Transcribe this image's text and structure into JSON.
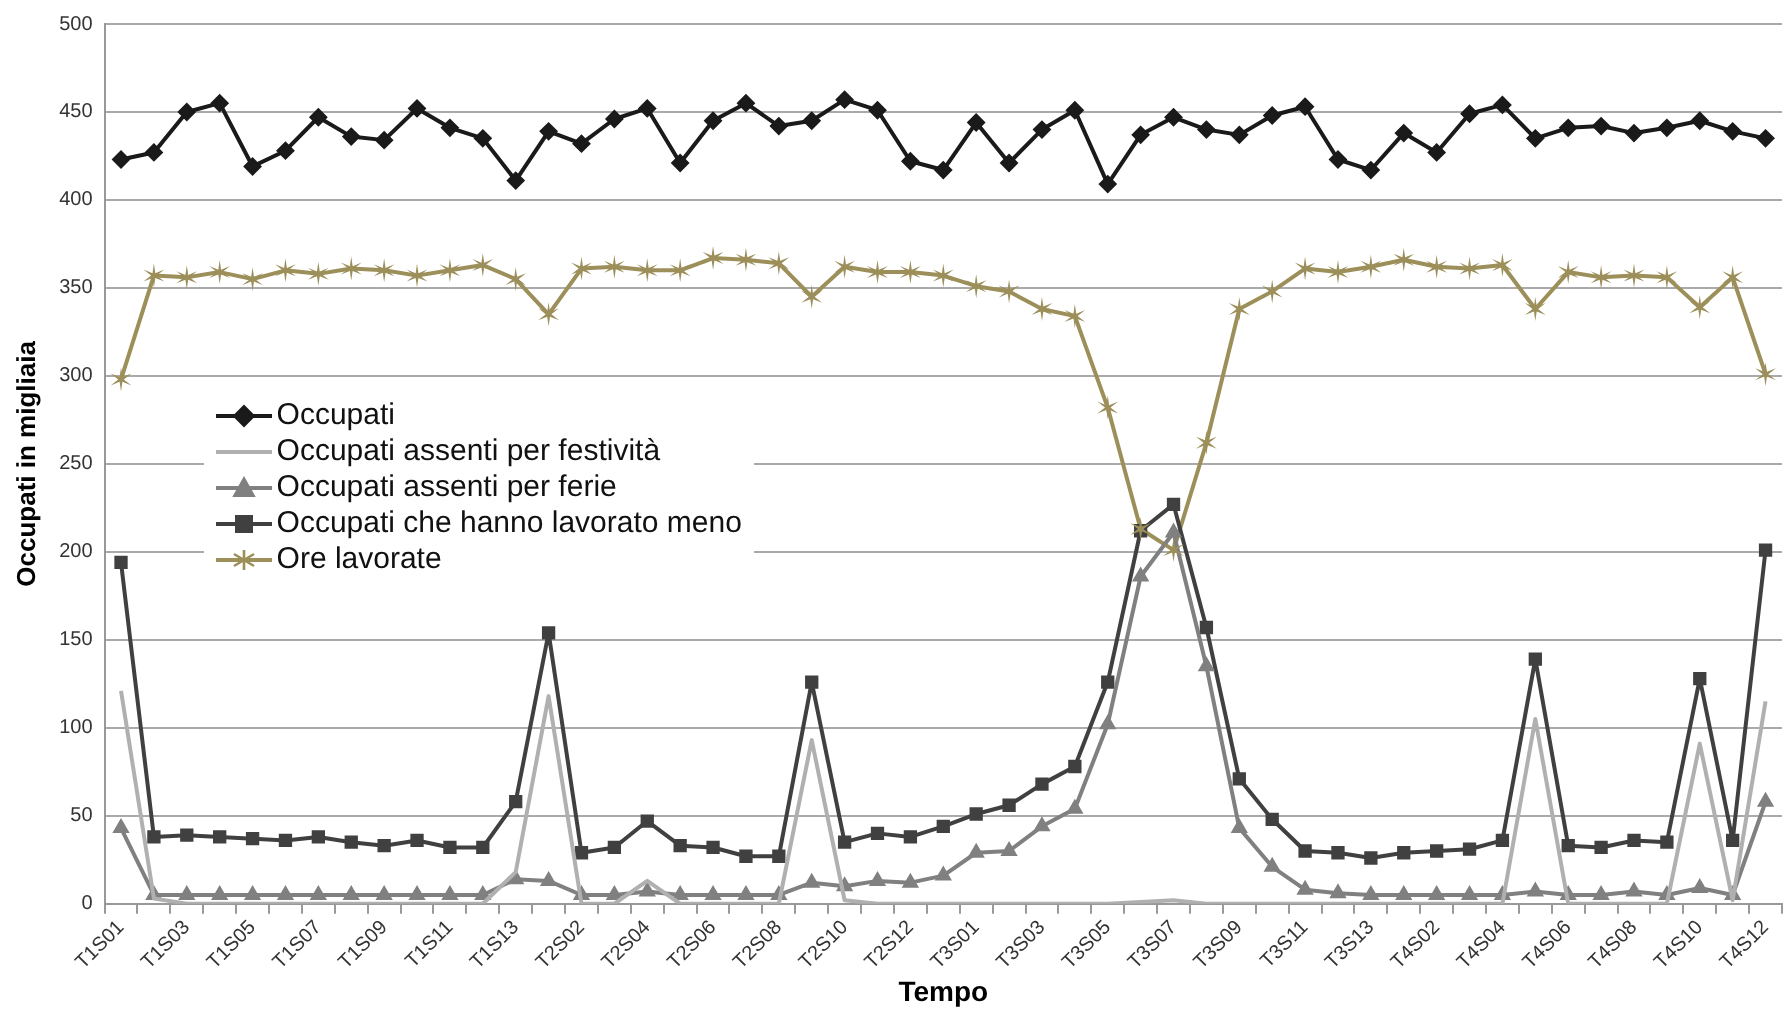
{
  "chart_data": {
    "type": "line",
    "xlabel": "Tempo",
    "ylabel": "Occupati in migliaia",
    "categories": [
      "T1S01",
      null,
      "T1S03",
      null,
      "T1S05",
      null,
      "T1S07",
      null,
      "T1S09",
      null,
      "T1S11",
      null,
      "T1S13",
      null,
      "T2S02",
      null,
      "T2S04",
      null,
      "T2S06",
      null,
      "T2S08",
      null,
      "T2S10",
      null,
      "T2S12",
      null,
      "T3S01",
      null,
      "T3S03",
      null,
      "T3S05",
      null,
      "T3S07",
      null,
      "T3S09",
      null,
      "T3S11",
      null,
      "T3S13",
      null,
      "T4S02",
      null,
      "T4S04",
      null,
      "T4S06",
      null,
      "T4S08",
      null,
      "T4S10",
      null,
      "T4S12"
    ],
    "ylim": [
      0,
      500
    ],
    "yticks": [
      0,
      50,
      100,
      150,
      200,
      250,
      300,
      350,
      400,
      450,
      500
    ],
    "grid": "y",
    "legend": "left",
    "line_style": "solid",
    "series": [
      {
        "name": "Occupati",
        "color": "#1a1a1a",
        "marker": "diamond",
        "values": [
          423,
          427,
          450,
          455,
          419,
          428,
          447,
          436,
          434,
          452,
          441,
          435,
          411,
          439,
          432,
          446,
          452,
          421,
          445,
          455,
          442,
          445,
          457,
          451,
          422,
          417,
          444,
          421,
          440,
          451,
          409,
          437,
          447,
          440,
          437,
          448,
          453,
          423,
          417,
          438,
          427,
          449,
          454,
          435,
          441,
          442,
          438,
          441,
          445,
          439,
          435
        ]
      },
      {
        "name": "Occupati assenti per festività",
        "color": "#b0b0b0",
        "marker": "none",
        "values": [
          121,
          3,
          0,
          0,
          0,
          0,
          0,
          0,
          0,
          0,
          0,
          0,
          18,
          118,
          0,
          0,
          13,
          0,
          0,
          0,
          0,
          93,
          2,
          0,
          0,
          0,
          0,
          0,
          0,
          0,
          0,
          1,
          2,
          0,
          0,
          0,
          0,
          0,
          0,
          0,
          0,
          0,
          0,
          105,
          0,
          0,
          0,
          0,
          91,
          2,
          115
        ]
      },
      {
        "name": "Occupati assenti per ferie",
        "color": "#808080",
        "marker": "triangle",
        "values": [
          43,
          5,
          5,
          5,
          5,
          5,
          5,
          5,
          5,
          5,
          5,
          5,
          14,
          13,
          5,
          5,
          7,
          5,
          5,
          5,
          5,
          12,
          10,
          13,
          12,
          16,
          29,
          30,
          44,
          54,
          102,
          186,
          211,
          135,
          43,
          21,
          8,
          6,
          5,
          5,
          5,
          5,
          5,
          7,
          5,
          5,
          7,
          5,
          9,
          5,
          58
        ]
      },
      {
        "name": "Occupati che hanno lavorato meno",
        "color": "#404040",
        "marker": "square",
        "values": [
          194,
          38,
          39,
          38,
          37,
          36,
          38,
          35,
          33,
          36,
          32,
          32,
          58,
          154,
          29,
          32,
          47,
          33,
          32,
          27,
          27,
          126,
          35,
          40,
          38,
          44,
          51,
          56,
          68,
          78,
          126,
          212,
          227,
          157,
          71,
          48,
          30,
          29,
          26,
          29,
          30,
          31,
          36,
          139,
          33,
          32,
          36,
          35,
          128,
          36,
          201
        ]
      },
      {
        "name": "Ore lavorate",
        "color": "#9c8f5a",
        "marker": "cross",
        "values": [
          298,
          357,
          356,
          359,
          355,
          360,
          358,
          361,
          360,
          357,
          360,
          363,
          355,
          335,
          361,
          362,
          360,
          360,
          367,
          366,
          364,
          345,
          362,
          359,
          359,
          357,
          351,
          348,
          338,
          334,
          282,
          213,
          201,
          262,
          338,
          348,
          361,
          359,
          362,
          366,
          362,
          361,
          363,
          338,
          359,
          356,
          357,
          356,
          339,
          356,
          301
        ]
      }
    ]
  }
}
